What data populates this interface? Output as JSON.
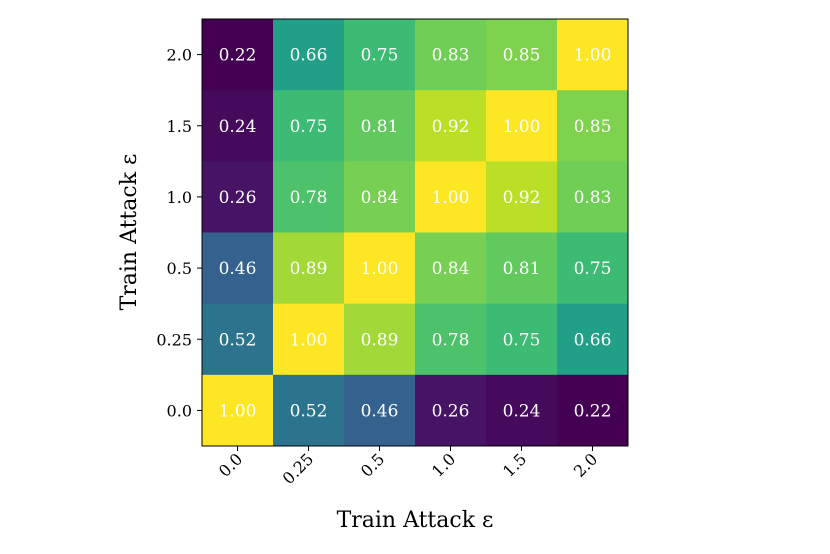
{
  "chart_data": {
    "type": "heatmap",
    "xlabel": "Train Attack ε",
    "ylabel": "Train Attack ε",
    "x_categories": [
      "0.0",
      "0.25",
      "0.5",
      "1.0",
      "1.5",
      "2.0"
    ],
    "y_categories": [
      "2.0",
      "1.5",
      "1.0",
      "0.5",
      "0.25",
      "0.0"
    ],
    "colormap": "viridis",
    "color_range": [
      0.22,
      1.0
    ],
    "values": [
      [
        0.22,
        0.66,
        0.75,
        0.83,
        0.85,
        1.0
      ],
      [
        0.24,
        0.75,
        0.81,
        0.92,
        1.0,
        0.85
      ],
      [
        0.26,
        0.78,
        0.84,
        1.0,
        0.92,
        0.83
      ],
      [
        0.46,
        0.89,
        1.0,
        0.84,
        0.81,
        0.75
      ],
      [
        0.52,
        1.0,
        0.89,
        0.78,
        0.75,
        0.66
      ],
      [
        1.0,
        0.52,
        0.46,
        0.26,
        0.24,
        0.22
      ]
    ]
  }
}
